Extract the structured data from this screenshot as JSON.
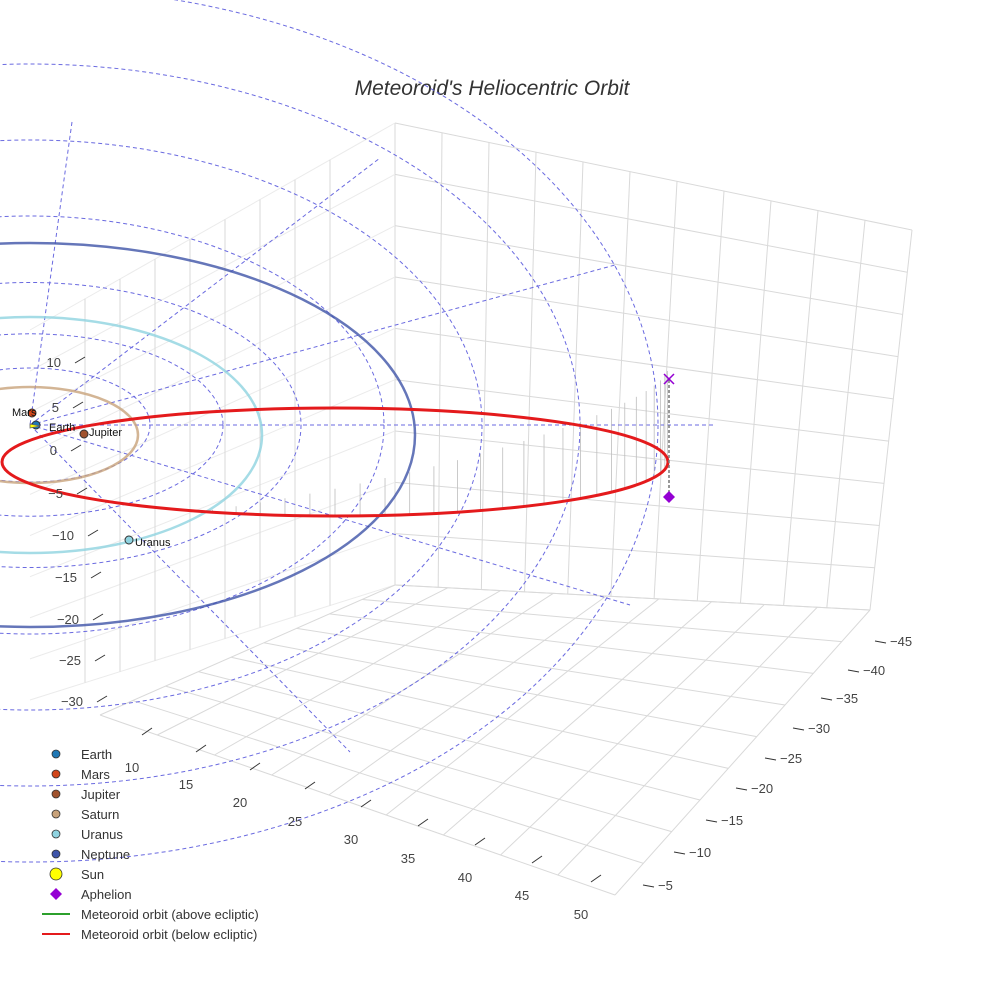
{
  "chart_data": {
    "type": "scatter",
    "title": "Meteoroid's Heliocentric Orbit",
    "axes": {
      "vertical_ticks": [
        "10",
        "5",
        "0",
        "−5",
        "−10",
        "−15",
        "−20",
        "−25",
        "−30"
      ],
      "front_ticks": [
        "10",
        "15",
        "20",
        "25",
        "30",
        "35",
        "40",
        "45",
        "50"
      ],
      "right_ticks": [
        "−45",
        "−40",
        "−35",
        "−30",
        "−25",
        "−20",
        "−15",
        "−10",
        "−5"
      ],
      "grid": true
    },
    "planets": [
      {
        "name": "Earth",
        "label": "Earth",
        "color": "#1f77b4"
      },
      {
        "name": "Mars",
        "label": "Mars",
        "color": "#d1461a"
      },
      {
        "name": "Jupiter",
        "label": "Jupiter",
        "color": "#a0522d"
      },
      {
        "name": "Saturn",
        "label": "",
        "color": "#c8a27a"
      },
      {
        "name": "Uranus",
        "label": "Uranus",
        "color": "#8fd3e0"
      },
      {
        "name": "Neptune",
        "label": "",
        "color": "#3e54a8"
      }
    ],
    "sun": {
      "name": "Sun",
      "color": "#ffff00"
    },
    "aphelion": {
      "name": "Aphelion",
      "color": "#9400d3"
    },
    "orbit_series": [
      {
        "name": "Meteoroid orbit (above ecliptic)",
        "color": "#2ca02c"
      },
      {
        "name": "Meteoroid orbit (below ecliptic)",
        "color": "#e41a1c"
      }
    ],
    "legend": {
      "position": "bottom-left",
      "items": [
        {
          "label": "Earth",
          "symbol": "circle",
          "color": "#1f77b4"
        },
        {
          "label": "Mars",
          "symbol": "circle",
          "color": "#d1461a"
        },
        {
          "label": "Jupiter",
          "symbol": "circle",
          "color": "#a0522d"
        },
        {
          "label": "Saturn",
          "symbol": "circle",
          "color": "#c8a27a"
        },
        {
          "label": "Uranus",
          "symbol": "circle",
          "color": "#8fd3e0"
        },
        {
          "label": "Neptune",
          "symbol": "circle",
          "color": "#3e54a8"
        },
        {
          "label": "Sun",
          "symbol": "big-circle",
          "color": "#ffff00"
        },
        {
          "label": "Aphelion",
          "symbol": "diamond",
          "color": "#9400d3"
        },
        {
          "label": "Meteoroid orbit (above ecliptic)",
          "symbol": "line",
          "color": "#2ca02c"
        },
        {
          "label": "Meteoroid orbit (below ecliptic)",
          "symbol": "line",
          "color": "#e41a1c"
        }
      ]
    }
  }
}
